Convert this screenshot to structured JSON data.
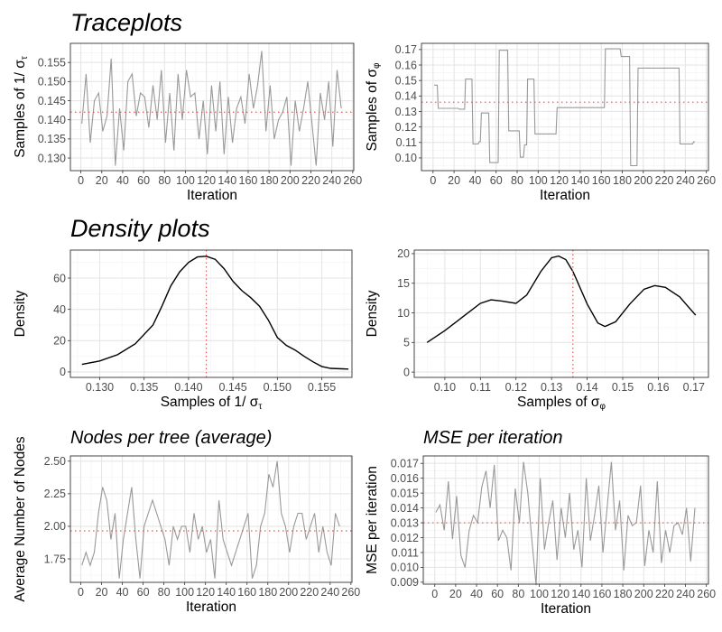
{
  "section_titles": {
    "trace": "Traceplots",
    "density": "Density plots"
  },
  "chart_data": [
    {
      "id": "trace_tau",
      "type": "line",
      "title": "",
      "xlabel": "Iteration",
      "ylabel": "Samples of 1/ σ",
      "ylabel_sub": "τ",
      "xlim": [
        -10,
        261
      ],
      "ylim": [
        0.1267,
        0.16
      ],
      "xticks": [
        0,
        20,
        40,
        60,
        80,
        100,
        120,
        140,
        160,
        180,
        200,
        220,
        240,
        260
      ],
      "xtick_labels": [
        "0",
        "20",
        "40",
        "60",
        "80",
        "100",
        "120",
        "140",
        "160",
        "180",
        "200",
        "220",
        "240",
        "260"
      ],
      "yticks": [
        0.13,
        0.135,
        0.14,
        0.145,
        0.15,
        0.155
      ],
      "ytick_labels": [
        "0.130",
        "0.135",
        "0.140",
        "0.145",
        "0.150",
        "0.155"
      ],
      "x_start": 1,
      "x_step": 4,
      "values": [
        0.139,
        0.152,
        0.134,
        0.145,
        0.147,
        0.137,
        0.141,
        0.156,
        0.128,
        0.143,
        0.132,
        0.15,
        0.152,
        0.141,
        0.147,
        0.146,
        0.138,
        0.149,
        0.14,
        0.153,
        0.134,
        0.147,
        0.132,
        0.152,
        0.14,
        0.153,
        0.146,
        0.147,
        0.135,
        0.145,
        0.131,
        0.149,
        0.137,
        0.15,
        0.131,
        0.146,
        0.134,
        0.143,
        0.146,
        0.139,
        0.152,
        0.143,
        0.149,
        0.158,
        0.137,
        0.149,
        0.135,
        0.14,
        0.142,
        0.146,
        0.128,
        0.145,
        0.137,
        0.143,
        0.15,
        0.139,
        0.128,
        0.147,
        0.14,
        0.15,
        0.133,
        0.153,
        0.143
      ],
      "hline": 0.142,
      "line_color": "#999999",
      "ref_color": "#e05a5a"
    },
    {
      "id": "trace_phi",
      "type": "line",
      "title": "",
      "xlabel": "Iteration",
      "ylabel": "Samples of  σ",
      "ylabel_sub": "φ",
      "xlim": [
        -11,
        262
      ],
      "ylim": [
        0.0918,
        0.174
      ],
      "xticks": [
        0,
        20,
        40,
        60,
        80,
        100,
        120,
        140,
        160,
        180,
        200,
        220,
        240,
        260
      ],
      "xtick_labels": [
        "0",
        "20",
        "40",
        "60",
        "80",
        "100",
        "120",
        "140",
        "160",
        "180",
        "200",
        "220",
        "240",
        "260"
      ],
      "yticks": [
        0.1,
        0.11,
        0.12,
        0.13,
        0.14,
        0.15,
        0.16,
        0.17
      ],
      "ytick_labels": [
        "0.10",
        "0.11",
        "0.12",
        "0.13",
        "0.14",
        "0.15",
        "0.16",
        "0.17"
      ],
      "steps": [
        [
          1,
          0.147
        ],
        [
          5,
          0.132
        ],
        [
          25,
          0.1315
        ],
        [
          31,
          0.151
        ],
        [
          38,
          0.109
        ],
        [
          44,
          0.1105
        ],
        [
          46,
          0.129
        ],
        [
          54,
          0.097
        ],
        [
          63,
          0.1695
        ],
        [
          72,
          0.1175
        ],
        [
          83,
          0.1005
        ],
        [
          87,
          0.1085
        ],
        [
          90,
          0.151
        ],
        [
          97,
          0.1155
        ],
        [
          118,
          0.1325
        ],
        [
          164,
          0.1705
        ],
        [
          179,
          0.1655
        ],
        [
          188,
          0.095
        ],
        [
          195,
          0.158
        ],
        [
          235,
          0.109
        ],
        [
          248,
          0.1105
        ]
      ],
      "x_end": 249,
      "hline": 0.136,
      "line_color": "#999999",
      "ref_color": "#e05a5a"
    },
    {
      "id": "density_tau",
      "type": "line",
      "title": "",
      "xlabel": "Samples of 1/ σ",
      "xlabel_sub": "τ",
      "ylabel": "Density",
      "xlim": [
        0.1267,
        0.1584
      ],
      "ylim": [
        -3.5,
        77.9
      ],
      "xticks": [
        0.13,
        0.135,
        0.14,
        0.145,
        0.15,
        0.155
      ],
      "xtick_labels": [
        "0.130",
        "0.135",
        "0.140",
        "0.145",
        "0.150",
        "0.155"
      ],
      "yticks": [
        0,
        20,
        40,
        60
      ],
      "ytick_labels": [
        "0",
        "20",
        "40",
        "60"
      ],
      "points": [
        [
          0.128,
          4.8
        ],
        [
          0.13,
          7
        ],
        [
          0.132,
          11
        ],
        [
          0.134,
          18
        ],
        [
          0.136,
          30
        ],
        [
          0.137,
          42
        ],
        [
          0.138,
          55
        ],
        [
          0.139,
          64
        ],
        [
          0.14,
          70
        ],
        [
          0.141,
          73.5
        ],
        [
          0.142,
          74
        ],
        [
          0.143,
          72
        ],
        [
          0.144,
          66
        ],
        [
          0.145,
          58
        ],
        [
          0.146,
          52
        ],
        [
          0.147,
          47.5
        ],
        [
          0.148,
          42
        ],
        [
          0.149,
          33
        ],
        [
          0.15,
          22
        ],
        [
          0.151,
          17
        ],
        [
          0.152,
          14
        ],
        [
          0.153,
          10
        ],
        [
          0.154,
          6.5
        ],
        [
          0.155,
          3.5
        ],
        [
          0.156,
          2.3
        ],
        [
          0.158,
          1.8
        ]
      ],
      "vline": 0.142,
      "line_color": "#000000",
      "ref_color": "#e05a5a"
    },
    {
      "id": "density_phi",
      "type": "line",
      "title": "",
      "xlabel": "Samples of  σ",
      "xlabel_sub": "φ",
      "ylabel": "Density",
      "xlim": [
        0.0914,
        0.1741
      ],
      "ylim": [
        -0.9,
        20.6
      ],
      "xticks": [
        0.1,
        0.11,
        0.12,
        0.13,
        0.14,
        0.15,
        0.16,
        0.17
      ],
      "xtick_labels": [
        "0.10",
        "0.11",
        "0.12",
        "0.13",
        "0.14",
        "0.15",
        "0.16",
        "0.17"
      ],
      "yticks": [
        0,
        5,
        10,
        15,
        20
      ],
      "ytick_labels": [
        "0",
        "5",
        "10",
        "15",
        "20"
      ],
      "points": [
        [
          0.095,
          5
        ],
        [
          0.1,
          7
        ],
        [
          0.105,
          9.3
        ],
        [
          0.11,
          11.6
        ],
        [
          0.113,
          12.2
        ],
        [
          0.116,
          12
        ],
        [
          0.12,
          11.6
        ],
        [
          0.123,
          13
        ],
        [
          0.127,
          17
        ],
        [
          0.13,
          19.3
        ],
        [
          0.132,
          19.6
        ],
        [
          0.134,
          19
        ],
        [
          0.136,
          17
        ],
        [
          0.14,
          11.5
        ],
        [
          0.143,
          8.3
        ],
        [
          0.145,
          7.7
        ],
        [
          0.148,
          8.5
        ],
        [
          0.152,
          11.5
        ],
        [
          0.156,
          14
        ],
        [
          0.159,
          14.6
        ],
        [
          0.162,
          14.3
        ],
        [
          0.166,
          12.7
        ],
        [
          0.1705,
          9.6
        ]
      ],
      "vline": 0.136,
      "line_color": "#000000",
      "ref_color": "#e05a5a"
    },
    {
      "id": "nodes",
      "type": "line",
      "title": "Nodes per tree (average)",
      "xlabel": "Iteration",
      "ylabel": "Average Number of Nodes",
      "xlim": [
        -10,
        261
      ],
      "ylim": [
        1.57,
        2.54
      ],
      "xticks": [
        0,
        20,
        40,
        60,
        80,
        100,
        120,
        140,
        160,
        180,
        200,
        220,
        240,
        260
      ],
      "xtick_labels": [
        "0",
        "20",
        "40",
        "60",
        "80",
        "100",
        "120",
        "140",
        "160",
        "180",
        "200",
        "220",
        "240",
        "260"
      ],
      "yticks": [
        1.75,
        2.0,
        2.25,
        2.5
      ],
      "ytick_labels": [
        "1.75",
        "2.00",
        "2.25",
        "2.50"
      ],
      "x_start": 1,
      "x_step": 4,
      "values": [
        1.7,
        1.8,
        1.7,
        1.8,
        2.1,
        2.3,
        2.2,
        1.9,
        2.1,
        1.6,
        1.9,
        2.1,
        2.3,
        1.9,
        1.6,
        2.0,
        2.1,
        2.2,
        2.1,
        2.0,
        1.9,
        1.7,
        2.0,
        1.9,
        2.0,
        2.0,
        1.8,
        2.1,
        1.9,
        2.0,
        1.8,
        1.9,
        1.6,
        2.2,
        1.9,
        1.8,
        1.7,
        1.8,
        1.9,
        2.0,
        2.1,
        1.6,
        1.7,
        2.0,
        2.1,
        2.4,
        2.3,
        2.5,
        2.1,
        2.0,
        1.8,
        2.0,
        2.1,
        2.1,
        1.9,
        2.0,
        2.1,
        1.8,
        2.0,
        1.8,
        1.7,
        2.1,
        2.0
      ],
      "hline": 1.965,
      "line_color": "#999999",
      "ref_color": "#e05a5a"
    },
    {
      "id": "mse",
      "type": "line",
      "title": "MSE per iteration",
      "xlabel": "Iteration",
      "ylabel": "MSE per iteration",
      "xlim": [
        -11,
        262
      ],
      "ylim": [
        0.00887,
        0.0175
      ],
      "xticks": [
        0,
        20,
        40,
        60,
        80,
        100,
        120,
        140,
        160,
        180,
        200,
        220,
        240,
        260
      ],
      "xtick_labels": [
        "0",
        "20",
        "40",
        "60",
        "80",
        "100",
        "120",
        "140",
        "160",
        "180",
        "200",
        "220",
        "240",
        "260"
      ],
      "yticks": [
        0.009,
        0.01,
        0.011,
        0.012,
        0.013,
        0.014,
        0.015,
        0.016,
        0.017
      ],
      "ytick_labels": [
        "0.009",
        "0.010",
        "0.011",
        "0.012",
        "0.013",
        "0.014",
        "0.015",
        "0.016",
        "0.017"
      ],
      "x_start": 1,
      "x_step": 4,
      "values": [
        0.0137,
        0.0142,
        0.0125,
        0.0158,
        0.0119,
        0.0148,
        0.0108,
        0.01,
        0.0125,
        0.0135,
        0.013,
        0.0154,
        0.0165,
        0.014,
        0.0169,
        0.0118,
        0.0125,
        0.012,
        0.0098,
        0.0153,
        0.013,
        0.0171,
        0.015,
        0.0118,
        0.0088,
        0.016,
        0.0112,
        0.013,
        0.0145,
        0.0105,
        0.014,
        0.012,
        0.015,
        0.0112,
        0.0125,
        0.01,
        0.016,
        0.0118,
        0.0135,
        0.0155,
        0.011,
        0.014,
        0.0171,
        0.0125,
        0.0145,
        0.0098,
        0.0135,
        0.0128,
        0.013,
        0.0155,
        0.0101,
        0.0125,
        0.011,
        0.0158,
        0.0103,
        0.0125,
        0.011,
        0.0128,
        0.013,
        0.0122,
        0.014,
        0.0104,
        0.014
      ],
      "hline": 0.013,
      "line_color": "#999999",
      "ref_color": "#e05a5a"
    }
  ]
}
